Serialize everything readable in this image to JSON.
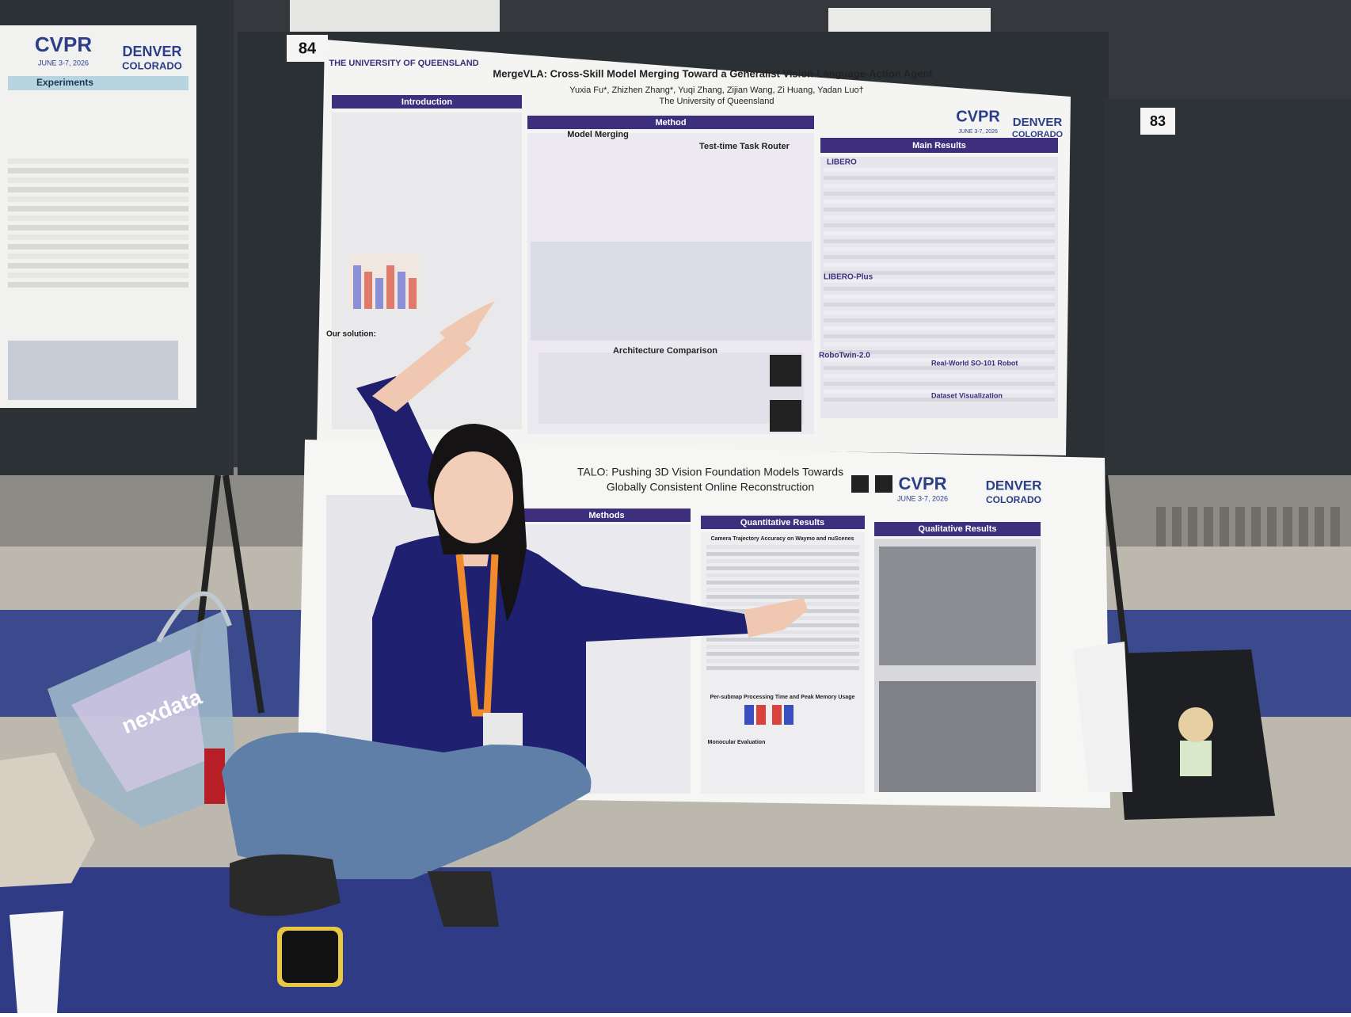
{
  "boards": [
    "84",
    "83"
  ],
  "left_poster": {
    "venue": "CVPR",
    "dates": "JUNE 3-7, 2026",
    "city": "DENVER",
    "state": "COLORADO",
    "section": "Experiments"
  },
  "top_poster": {
    "university": "THE UNIVERSITY OF QUEENSLAND",
    "title": "MergeVLA: Cross-Skill Model Merging Toward a Generalist Vision-Language-Action Agent",
    "authors": "Yuxia Fu*, Zhizhen Zhang*, Yuqi Zhang, Zijian Wang, Zi Huang, Yadan Luo†",
    "affiliation": "The University of Queensland",
    "venue": "CVPR",
    "dates": "JUNE 3-7, 2026",
    "city": "DENVER",
    "state": "COLORADO",
    "sections": [
      "Introduction",
      "Method",
      "Main Results"
    ],
    "subsections": [
      "Model Merging",
      "Test-time Task Router",
      "Architecture Comparison",
      "LIBERO",
      "LIBERO-Plus",
      "RoboTwin-2.0",
      "Real-World SO-101 Robot",
      "Dataset Visualization",
      "Our solution:"
    ]
  },
  "bottom_poster": {
    "title_lines": [
      "TALO: Pushing 3D Vision Foundation Models Towards",
      "Globally Consistent Online Reconstruction"
    ],
    "venue": "CVPR",
    "dates": "JUNE 3-7, 2026",
    "city": "DENVER",
    "state": "COLORADO",
    "sections": [
      "Methods",
      "Quantitative Results",
      "Qualitative Results"
    ],
    "subsections": [
      "Camera Trajectory Accuracy on Waymo and nuScenes",
      "Per-submap Processing Time and Peak Memory Usage",
      "Monocular Evaluation"
    ]
  },
  "bag_text": "nexdata"
}
